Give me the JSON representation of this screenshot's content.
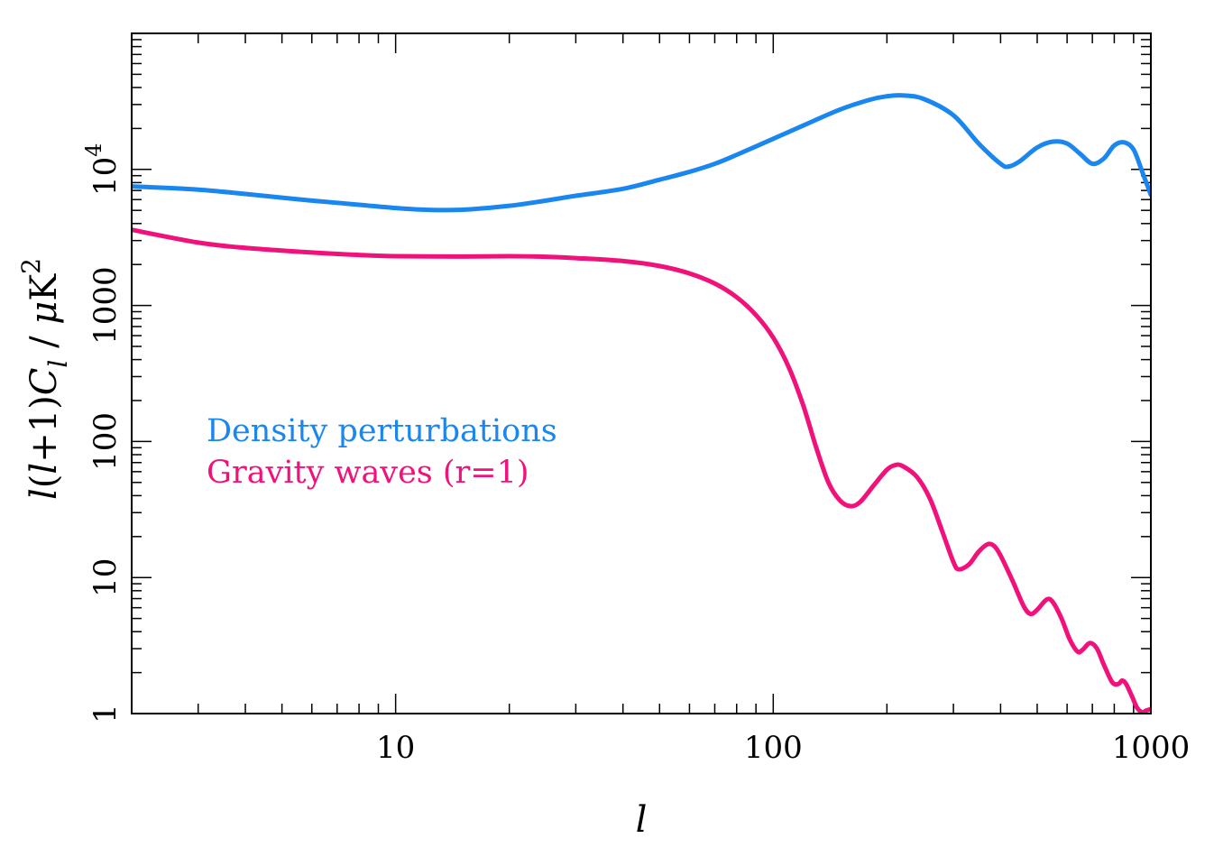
{
  "chart_data": {
    "type": "line",
    "title": "",
    "xlabel": "l",
    "ylabel": "l(l+1)C_l / μK^2",
    "ylabel_parts": {
      "a": "l",
      "b": "(",
      "c": "l",
      "d": "+1)",
      "e": "C",
      "f": "l",
      "g": " / ",
      "h": "μ",
      "i": "K",
      "j": "2"
    },
    "xscale": "log",
    "yscale": "log",
    "xlim": [
      2,
      1000
    ],
    "ylim": [
      1,
      100000
    ],
    "x_ticks": [
      {
        "value": 10,
        "label": "10"
      },
      {
        "value": 100,
        "label": "100"
      },
      {
        "value": 1000,
        "label": "1000"
      }
    ],
    "y_ticks": [
      {
        "value": 1,
        "label": "1"
      },
      {
        "value": 10,
        "label": "10"
      },
      {
        "value": 100,
        "label": "100"
      },
      {
        "value": 1000,
        "label": "1000"
      },
      {
        "value": 10000,
        "label": "10",
        "exp": "4"
      }
    ],
    "grid": false,
    "legend": {
      "placement": "center-left"
    },
    "series": [
      {
        "name": "Density perturbations",
        "color": "#1a86ef",
        "points": [
          [
            2,
            7500
          ],
          [
            3,
            7100
          ],
          [
            4,
            6600
          ],
          [
            5,
            6200
          ],
          [
            6,
            5900
          ],
          [
            8,
            5500
          ],
          [
            10,
            5200
          ],
          [
            12,
            5050
          ],
          [
            15,
            5050
          ],
          [
            20,
            5400
          ],
          [
            25,
            5900
          ],
          [
            30,
            6400
          ],
          [
            40,
            7200
          ],
          [
            50,
            8400
          ],
          [
            60,
            9600
          ],
          [
            70,
            11000
          ],
          [
            80,
            12800
          ],
          [
            100,
            16800
          ],
          [
            120,
            21000
          ],
          [
            150,
            27500
          ],
          [
            180,
            32500
          ],
          [
            200,
            34500
          ],
          [
            220,
            35000
          ],
          [
            250,
            33000
          ],
          [
            300,
            25000
          ],
          [
            350,
            15500
          ],
          [
            400,
            11000
          ],
          [
            420,
            10500
          ],
          [
            450,
            11500
          ],
          [
            500,
            14500
          ],
          [
            550,
            16000
          ],
          [
            600,
            15500
          ],
          [
            650,
            13000
          ],
          [
            700,
            11000
          ],
          [
            750,
            12000
          ],
          [
            800,
            15000
          ],
          [
            850,
            15800
          ],
          [
            900,
            14000
          ],
          [
            950,
            9500
          ],
          [
            1000,
            6500
          ]
        ]
      },
      {
        "name": "Gravity waves (r=1)",
        "color": "#f0127a",
        "points": [
          [
            2,
            3600
          ],
          [
            3,
            2900
          ],
          [
            4,
            2650
          ],
          [
            6,
            2450
          ],
          [
            8,
            2350
          ],
          [
            10,
            2300
          ],
          [
            15,
            2290
          ],
          [
            20,
            2300
          ],
          [
            25,
            2280
          ],
          [
            30,
            2230
          ],
          [
            40,
            2120
          ],
          [
            50,
            1950
          ],
          [
            60,
            1720
          ],
          [
            70,
            1450
          ],
          [
            80,
            1150
          ],
          [
            90,
            850
          ],
          [
            100,
            580
          ],
          [
            110,
            350
          ],
          [
            120,
            185
          ],
          [
            130,
            90
          ],
          [
            140,
            50
          ],
          [
            150,
            37
          ],
          [
            160,
            33.5
          ],
          [
            170,
            36
          ],
          [
            185,
            48
          ],
          [
            200,
            62
          ],
          [
            210,
            67
          ],
          [
            220,
            66
          ],
          [
            240,
            55
          ],
          [
            260,
            38
          ],
          [
            280,
            22
          ],
          [
            300,
            13
          ],
          [
            310,
            11.5
          ],
          [
            330,
            12.5
          ],
          [
            350,
            15.5
          ],
          [
            370,
            17.6
          ],
          [
            385,
            17
          ],
          [
            400,
            14.5
          ],
          [
            430,
            9.5
          ],
          [
            460,
            6.2
          ],
          [
            480,
            5.4
          ],
          [
            500,
            5.8
          ],
          [
            530,
            6.9
          ],
          [
            550,
            6.6
          ],
          [
            580,
            5
          ],
          [
            610,
            3.5
          ],
          [
            640,
            2.85
          ],
          [
            660,
            2.95
          ],
          [
            690,
            3.3
          ],
          [
            720,
            3
          ],
          [
            750,
            2.3
          ],
          [
            790,
            1.7
          ],
          [
            820,
            1.65
          ],
          [
            840,
            1.75
          ],
          [
            860,
            1.65
          ],
          [
            890,
            1.35
          ],
          [
            920,
            1.1
          ],
          [
            950,
            1.02
          ],
          [
            970,
            1.05
          ],
          [
            1000,
            1.08
          ]
        ]
      }
    ]
  }
}
